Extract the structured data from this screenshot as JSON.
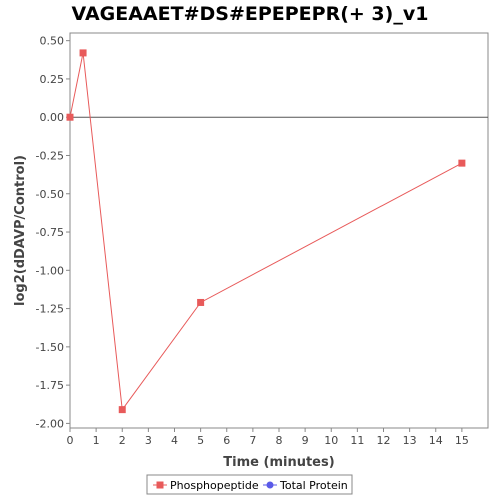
{
  "chart_data": {
    "type": "line",
    "title": "VAGEAAET#DS#EPEPEPR(+ 3)_v1",
    "xlabel": "Time (minutes)",
    "ylabel": "log2(dDAVP/Control)",
    "xlim": [
      0,
      16
    ],
    "ylim": [
      -2.03,
      0.55
    ],
    "x_ticks": [
      0,
      1,
      2,
      3,
      4,
      5,
      6,
      7,
      8,
      9,
      10,
      11,
      12,
      13,
      14,
      15
    ],
    "y_ticks": [
      0.5,
      0.25,
      0.0,
      -0.25,
      -0.5,
      -0.75,
      -1.0,
      -1.25,
      -1.5,
      -1.75,
      -2.0
    ],
    "y_tick_labels": [
      "0.50",
      "0.25",
      "0.00",
      "-0.25",
      "-0.50",
      "-0.75",
      "-1.00",
      "-1.25",
      "-1.50",
      "-1.75",
      "-2.00"
    ],
    "reference_line_y": 0,
    "grid": false,
    "legend_position": "bottom",
    "series": [
      {
        "name": "Phosphopeptide",
        "color": "#e85a5a",
        "marker": "square",
        "x": [
          0,
          0.5,
          2,
          5,
          15
        ],
        "y": [
          0.0,
          0.42,
          -1.91,
          -1.21,
          -0.3
        ]
      },
      {
        "name": "Total Protein",
        "color": "#5a5ae8",
        "marker": "circle",
        "x": [],
        "y": []
      }
    ]
  }
}
